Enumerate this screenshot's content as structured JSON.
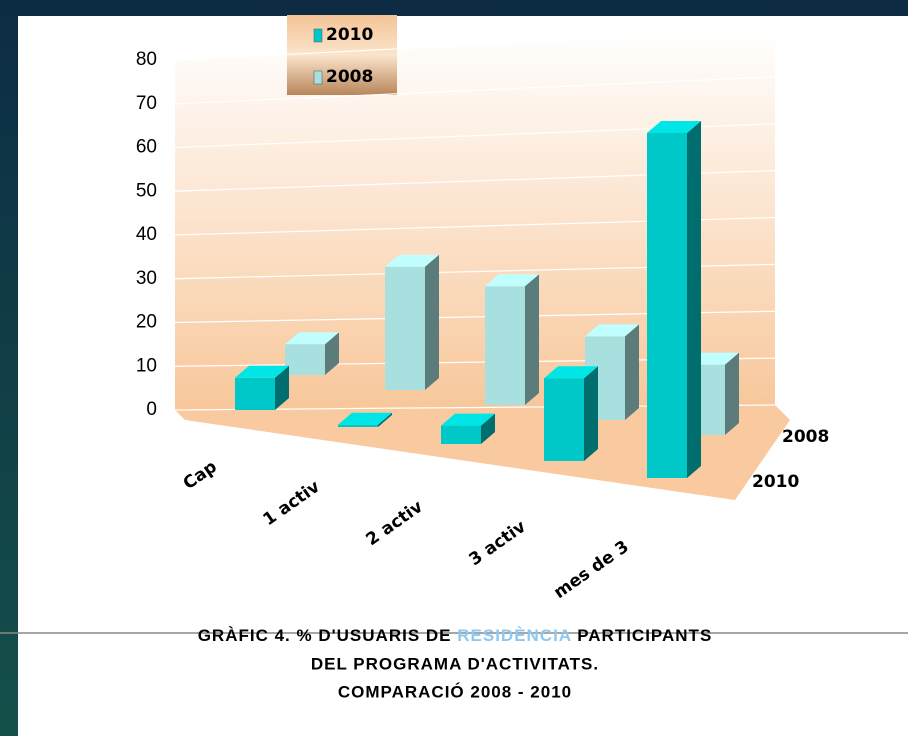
{
  "chart_data": {
    "type": "bar3d",
    "title": "GRÀFIC 4. % D'USUARIS  DE",
    "title_highlight": "RESIDÈNCIA",
    "title_rest": "PARTICIPANTS",
    "subtitle": [
      "DEL PROGRAMA D'ACTIVITATS.",
      "COMPARACIÓ 2008 - 2010"
    ],
    "categories": [
      "Cap",
      "1 activ",
      "2 activ",
      "3 activ",
      "mes de 3"
    ],
    "series": [
      {
        "name": "2010",
        "color": "#00c8c8",
        "values": [
          7,
          0.5,
          4,
          18,
          75
        ]
      },
      {
        "name": "2008",
        "color": "#a8e0e0",
        "values": [
          7,
          28,
          27,
          19,
          16
        ]
      }
    ],
    "ylim": [
      0,
      80
    ],
    "yticks": [
      0,
      10,
      20,
      30,
      40,
      50,
      60,
      70,
      80
    ],
    "grid": true
  }
}
